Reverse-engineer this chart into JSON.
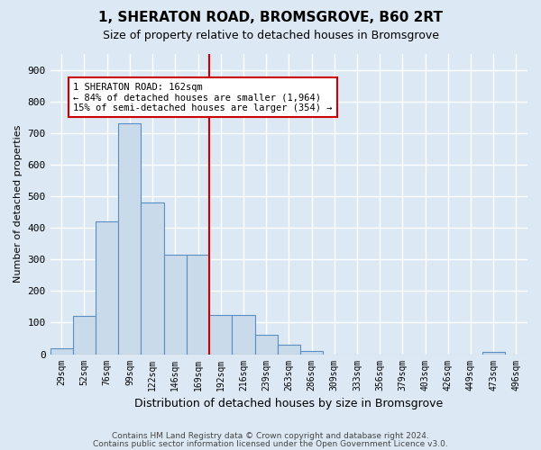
{
  "title": "1, SHERATON ROAD, BROMSGROVE, B60 2RT",
  "subtitle": "Size of property relative to detached houses in Bromsgrove",
  "xlabel": "Distribution of detached houses by size in Bromsgrove",
  "ylabel": "Number of detached properties",
  "bins": [
    "29sqm",
    "52sqm",
    "76sqm",
    "99sqm",
    "122sqm",
    "146sqm",
    "169sqm",
    "192sqm",
    "216sqm",
    "239sqm",
    "263sqm",
    "286sqm",
    "309sqm",
    "333sqm",
    "356sqm",
    "379sqm",
    "403sqm",
    "426sqm",
    "449sqm",
    "473sqm",
    "496sqm"
  ],
  "values": [
    20,
    120,
    420,
    730,
    480,
    315,
    315,
    125,
    125,
    60,
    30,
    10,
    0,
    0,
    0,
    0,
    0,
    0,
    0,
    8,
    0
  ],
  "bar_color": "#c9daea",
  "bar_edge_color": "#5b8ec2",
  "vline_color": "#cc0000",
  "annotation_text": "1 SHERATON ROAD: 162sqm\n← 84% of detached houses are smaller (1,964)\n15% of semi-detached houses are larger (354) →",
  "annotation_box_color": "white",
  "annotation_box_edge": "#cc0000",
  "ylim": [
    0,
    950
  ],
  "yticks": [
    0,
    100,
    200,
    300,
    400,
    500,
    600,
    700,
    800,
    900
  ],
  "footer1": "Contains HM Land Registry data © Crown copyright and database right 2024.",
  "footer2": "Contains public sector information licensed under the Open Government Licence v3.0.",
  "bg_color": "#dce9f5",
  "plot_bg_color": "#dce9f5"
}
